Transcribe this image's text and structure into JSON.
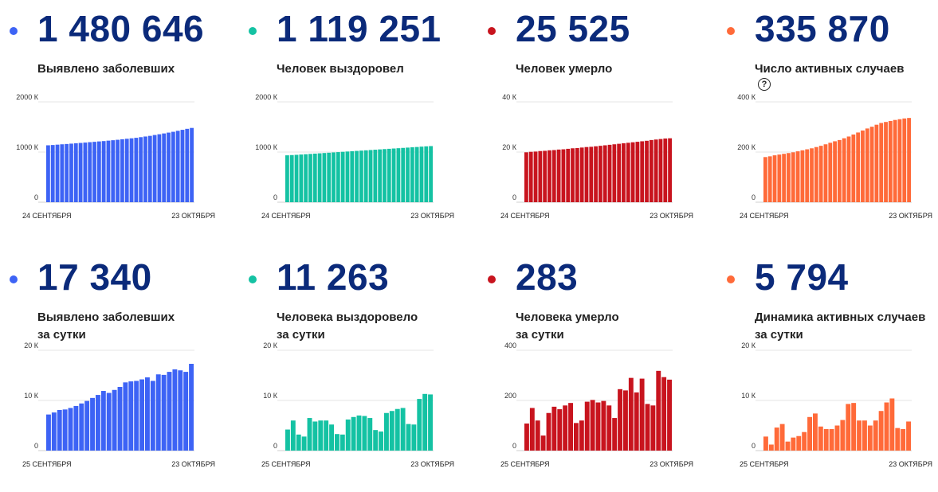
{
  "colors": {
    "blue": "#3d63f5",
    "teal": "#14c2a3",
    "red": "#c8141e",
    "orange": "#ff6a39",
    "number": "#0b2a7a"
  },
  "panels": [
    {
      "value": "1 480 646",
      "label": [
        "Выявлено заболевших"
      ],
      "help": false
    },
    {
      "value": "1 119 251",
      "label": [
        "Человек выздоровел"
      ],
      "help": false
    },
    {
      "value": "25 525",
      "label": [
        "Человек умерло"
      ],
      "help": false
    },
    {
      "value": "335 870",
      "label": [
        "Число активных случаев"
      ],
      "help": true,
      "help_symbol": "?"
    },
    {
      "value": "17 340",
      "label": [
        "Выявлено заболевших",
        "за сутки"
      ],
      "help": false
    },
    {
      "value": "11 263",
      "label": [
        "Человека выздоровело",
        "за сутки"
      ],
      "help": false
    },
    {
      "value": "283",
      "label": [
        "Человека умерло",
        "за сутки"
      ],
      "help": false
    },
    {
      "value": "5 794",
      "label": [
        "Динамика активных случаев",
        "за сутки"
      ],
      "help": false
    }
  ],
  "chart_data": [
    {
      "type": "bar",
      "color": "blue",
      "yticks": [
        "2000 К",
        "1000 К",
        "0"
      ],
      "ylim": [
        0,
        2000
      ],
      "unit": "thousands",
      "xstart": "24 СЕНТЯБРЯ",
      "xend": "23 ОКТЯБРЯ",
      "values": [
        1135,
        1141,
        1148,
        1155,
        1161,
        1168,
        1175,
        1182,
        1189,
        1197,
        1204,
        1212,
        1219,
        1228,
        1236,
        1245,
        1255,
        1265,
        1274,
        1284,
        1297,
        1310,
        1323,
        1340,
        1355,
        1371,
        1388,
        1404,
        1424,
        1443,
        1463,
        1481
      ]
    },
    {
      "type": "bar",
      "color": "teal",
      "yticks": [
        "2000 К",
        "1000 К",
        "0"
      ],
      "ylim": [
        0,
        2000
      ],
      "unit": "thousands",
      "xstart": "24 СЕНТЯБРЯ",
      "xend": "23 ОКТЯБРЯ",
      "values": [
        935,
        940,
        945,
        951,
        957,
        963,
        969,
        975,
        981,
        987,
        993,
        999,
        1005,
        1011,
        1017,
        1023,
        1029,
        1035,
        1041,
        1047,
        1053,
        1059,
        1065,
        1071,
        1077,
        1083,
        1089,
        1095,
        1101,
        1108,
        1114,
        1119
      ]
    },
    {
      "type": "bar",
      "color": "red",
      "yticks": [
        "40 К",
        "20 К",
        "0"
      ],
      "ylim": [
        0,
        40
      ],
      "unit": "thousands",
      "xstart": "24 СЕНТЯБРЯ",
      "xend": "23 ОКТЯБРЯ",
      "values": [
        19.9,
        20.1,
        20.2,
        20.4,
        20.5,
        20.7,
        20.8,
        21.0,
        21.1,
        21.3,
        21.5,
        21.6,
        21.8,
        22.0,
        22.1,
        22.3,
        22.5,
        22.7,
        22.9,
        23.1,
        23.3,
        23.5,
        23.7,
        23.9,
        24.1,
        24.3,
        24.5,
        24.8,
        25.0,
        25.2,
        25.4,
        25.5
      ]
    },
    {
      "type": "bar",
      "color": "orange",
      "yticks": [
        "400 К",
        "200 К",
        "0"
      ],
      "ylim": [
        0,
        400
      ],
      "unit": "thousands",
      "xstart": "24 СЕНТЯБРЯ",
      "xend": "23 ОКТЯБРЯ",
      "values": [
        180,
        183,
        187,
        190,
        193,
        196,
        199,
        203,
        207,
        211,
        215,
        220,
        225,
        231,
        237,
        243,
        248,
        255,
        262,
        270,
        278,
        286,
        294,
        301,
        309,
        316,
        320,
        324,
        328,
        331,
        334,
        336
      ]
    },
    {
      "type": "bar",
      "color": "blue",
      "yticks": [
        "20 К",
        "10 К",
        "0"
      ],
      "ylim": [
        0,
        20
      ],
      "unit": "thousands",
      "xstart": "25 СЕНТЯБРЯ",
      "xend": "23 ОКТЯБРЯ",
      "values": [
        7.2,
        7.6,
        8.1,
        8.2,
        8.5,
        8.9,
        9.4,
        9.9,
        10.5,
        11.1,
        11.9,
        11.5,
        12.1,
        12.7,
        13.6,
        13.8,
        13.9,
        14.2,
        14.6,
        13.9,
        15.2,
        15.1,
        15.7,
        16.2,
        16.0,
        15.7,
        17.3
      ]
    },
    {
      "type": "bar",
      "color": "teal",
      "yticks": [
        "20 К",
        "10 К",
        "0"
      ],
      "ylim": [
        0,
        20
      ],
      "unit": "thousands",
      "xstart": "25 СЕНТЯБРЯ",
      "xend": "23 ОКТЯБРЯ",
      "values": [
        4.2,
        6.0,
        3.2,
        2.8,
        6.5,
        5.8,
        6.0,
        6.0,
        5.2,
        3.3,
        3.2,
        6.2,
        6.7,
        7.0,
        6.9,
        6.5,
        4.1,
        3.8,
        7.5,
        7.9,
        8.3,
        8.5,
        5.3,
        5.2,
        10.3,
        11.3,
        11.2
      ]
    },
    {
      "type": "bar",
      "color": "red",
      "yticks": [
        "400",
        "200",
        "0"
      ],
      "ylim": [
        0,
        400
      ],
      "unit": "people",
      "xstart": "25 СЕНТЯБРЯ",
      "xend": "23 ОКТЯБРЯ",
      "values": [
        108,
        170,
        120,
        60,
        150,
        175,
        165,
        180,
        190,
        110,
        120,
        195,
        202,
        192,
        198,
        180,
        130,
        245,
        240,
        290,
        232,
        287,
        186,
        180,
        318,
        293,
        283
      ]
    },
    {
      "type": "bar",
      "color": "orange",
      "yticks": [
        "20 К",
        "10 К",
        "0"
      ],
      "ylim": [
        0,
        20
      ],
      "unit": "thousands",
      "xstart": "25 СЕНТЯБРЯ",
      "xend": "23 ОКТЯБРЯ",
      "values": [
        2.8,
        1.2,
        4.6,
        5.3,
        1.8,
        2.6,
        2.9,
        3.7,
        6.7,
        7.4,
        4.8,
        4.3,
        4.3,
        5.0,
        6.1,
        9.3,
        9.5,
        6.0,
        6.0,
        5.0,
        6.0,
        7.9,
        9.6,
        10.4,
        4.5,
        4.3,
        5.8
      ]
    }
  ]
}
